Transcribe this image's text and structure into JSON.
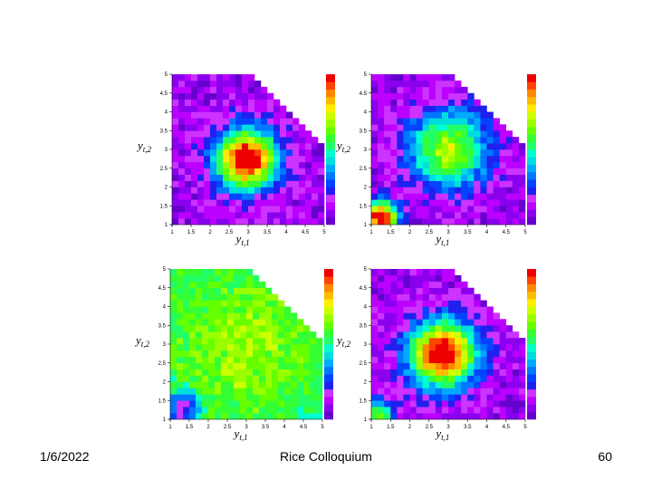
{
  "footer": {
    "date": "1/6/2022",
    "title": "Rice Colloquium",
    "page": "60"
  },
  "colors": {
    "palette": [
      "#6600cc",
      "#8a00ee",
      "#bb00ff",
      "#cc33ff",
      "#2020ee",
      "#0044ff",
      "#0077ff",
      "#00aaff",
      "#00dddd",
      "#00ffcc",
      "#22ff66",
      "#33ff33",
      "#66ff00",
      "#99ff00",
      "#ccff00",
      "#ffee00",
      "#ffbb00",
      "#ff8800",
      "#ff4400",
      "#ee0000"
    ],
    "background": "#ffffff"
  },
  "chart_data": [
    {
      "type": "heatmap",
      "xlabel": "y_{t,1}",
      "ylabel": "y_{t,2}",
      "xlim": [
        1,
        5
      ],
      "ylim": [
        1,
        5
      ],
      "xticks": [
        "1",
        "1.5",
        "2",
        "2.5",
        "3",
        "3.5",
        "4",
        "4.5",
        "5"
      ],
      "yticks": [
        "1",
        "1.5",
        "2",
        "2.5",
        "3",
        "3.5",
        "4",
        "4.5",
        "5"
      ],
      "colorbar": true,
      "blobs": [
        {
          "x": 2.95,
          "y": 2.75,
          "sigma": 0.55,
          "amp": 1.0
        }
      ],
      "base": 0.1
    },
    {
      "type": "heatmap",
      "xlabel": "y_{t,1}",
      "ylabel": "y_{t,2}",
      "xlim": [
        1,
        5
      ],
      "ylim": [
        1,
        5
      ],
      "xticks": [
        "1",
        "1.5",
        "2",
        "2.5",
        "3",
        "3.5",
        "4",
        "4.5",
        "5"
      ],
      "yticks": [
        "1",
        "1.5",
        "2",
        "2.5",
        "3",
        "3.5",
        "4",
        "4.5",
        "5"
      ],
      "colorbar": true,
      "blobs": [
        {
          "x": 3.0,
          "y": 3.0,
          "sigma": 0.75,
          "amp": 0.62
        },
        {
          "x": 1.25,
          "y": 1.2,
          "sigma": 0.3,
          "amp": 1.0
        }
      ],
      "base": 0.08
    },
    {
      "type": "heatmap",
      "xlabel": "y_{t,1}",
      "ylabel": "y_{t,2}",
      "xlim": [
        1,
        5
      ],
      "ylim": [
        1,
        5
      ],
      "xticks": [
        "1",
        "1.5",
        "2",
        "2.5",
        "3",
        "3.5",
        "4",
        "4.5",
        "5"
      ],
      "yticks": [
        "1",
        "1.5",
        "2",
        "2.5",
        "3",
        "3.5",
        "4",
        "4.5",
        "5"
      ],
      "colorbar": true,
      "blobs": [
        {
          "x": 3.0,
          "y": 3.0,
          "sigma": 1.5,
          "amp": 0.18
        },
        {
          "x": 1.35,
          "y": 1.3,
          "sigma": 0.28,
          "amp": -0.42
        }
      ],
      "base": 0.5
    },
    {
      "type": "heatmap",
      "xlabel": "y_{t,1}",
      "ylabel": "y_{t,2}",
      "xlim": [
        1,
        5
      ],
      "ylim": [
        1,
        5
      ],
      "xticks": [
        "1",
        "1.5",
        "2",
        "2.5",
        "3",
        "3.5",
        "4",
        "4.5",
        "5"
      ],
      "yticks": [
        "1",
        "1.5",
        "2",
        "2.5",
        "3",
        "3.5",
        "4",
        "4.5",
        "5"
      ],
      "colorbar": true,
      "blobs": [
        {
          "x": 2.85,
          "y": 2.75,
          "sigma": 0.6,
          "amp": 1.0
        },
        {
          "x": 1.15,
          "y": 1.15,
          "sigma": 0.28,
          "amp": 0.55
        }
      ],
      "base": 0.1
    }
  ]
}
